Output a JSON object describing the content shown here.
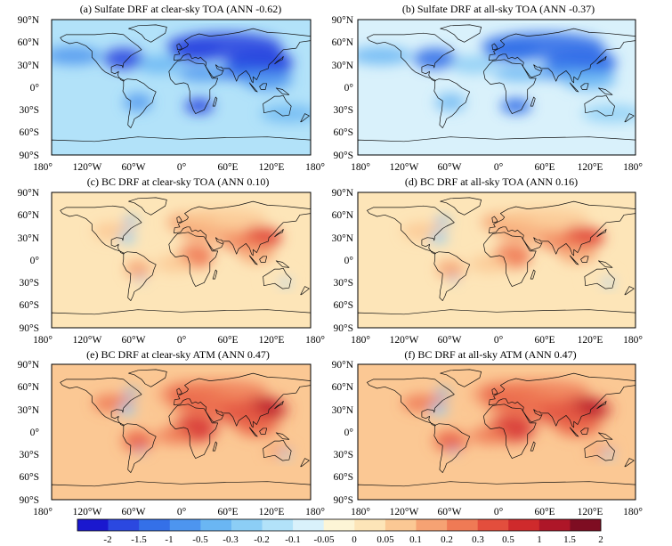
{
  "panels": [
    {
      "title": "(a) Sulfate DRF at clear-sky TOA (ANN -0.62)",
      "type": "sulfate",
      "intensity": 1.0
    },
    {
      "title": "(b) Sulfate DRF at all-sky TOA (ANN -0.37)",
      "type": "sulfate",
      "intensity": 0.75
    },
    {
      "title": "(c) BC DRF at clear-sky TOA (ANN 0.10)",
      "type": "bc",
      "intensity": 0.55
    },
    {
      "title": "(d) BC DRF at all-sky TOA (ANN 0.16)",
      "type": "bc",
      "intensity": 0.8
    },
    {
      "title": "(e) BC DRF at clear-sky ATM (ANN 0.47)",
      "type": "bc",
      "intensity": 1.25
    },
    {
      "title": "(f) BC DRF at all-sky ATM (ANN 0.47)",
      "type": "bc",
      "intensity": 1.3
    }
  ],
  "lat_ticks": [
    "90°N",
    "60°N",
    "30°N",
    "0°",
    "30°S",
    "60°S",
    "90°S"
  ],
  "lon_ticks": [
    "180°",
    "120°W",
    "60°W",
    "0°",
    "60°E",
    "120°E",
    "180°"
  ],
  "colorbar": {
    "labels": [
      "-2",
      "-1.5",
      "-1",
      "-0.5",
      "-0.3",
      "-0.2",
      "-0.1",
      "-0.05",
      "0",
      "0.05",
      "0.1",
      "0.2",
      "0.3",
      "0.5",
      "1",
      "1.5",
      "2"
    ],
    "colors": [
      "#1a18cf",
      "#2b48e0",
      "#3470e8",
      "#4d95ef",
      "#6ab6f3",
      "#8ccef6",
      "#b2e2f9",
      "#d9f1fb",
      "#fdf5d6",
      "#fde5b8",
      "#fbc894",
      "#f6a273",
      "#ef7a55",
      "#e34e3d",
      "#cf2a2c",
      "#ae1628",
      "#7e0d22"
    ]
  }
}
